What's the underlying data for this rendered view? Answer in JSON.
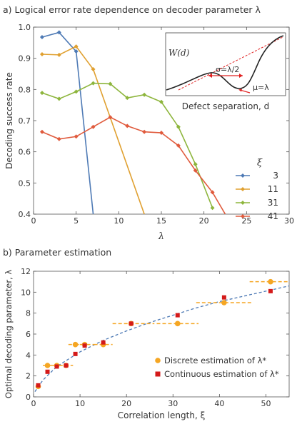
{
  "panel_a": {
    "title": "a) Logical error rate dependence on decoder parameter λ"
  },
  "panel_b": {
    "title": "b) Parameter estimation"
  },
  "colors": {
    "s3": "#4e7ab5",
    "s11": "#e0a030",
    "s31": "#8db53c",
    "s41": "#e05a3c",
    "discrete": "#f5a623",
    "continuous": "#d41a1a",
    "fit": "#4e7ab5",
    "inset_dash": "#e02020"
  },
  "chart_data": [
    {
      "type": "line",
      "xlabel": "λ",
      "ylabel": "Decoding success rate",
      "xlim": [
        0,
        30
      ],
      "ylim": [
        0.4,
        1.0
      ],
      "xticks": [
        0,
        5,
        10,
        15,
        20,
        25,
        30
      ],
      "yticks": [
        0.4,
        0.5,
        0.6,
        0.7,
        0.8,
        0.9,
        1.0
      ],
      "ytick_labels": [
        "0.4",
        "0.5",
        "0.6",
        "0.7",
        "0.8",
        "0.9",
        "1.0"
      ],
      "legend_title": "ξ",
      "legend_position": "right",
      "series": [
        {
          "name": "3",
          "x": [
            1,
            3,
            5,
            7
          ],
          "y": [
            0.968,
            0.983,
            0.922,
            0.4
          ]
        },
        {
          "name": "11",
          "x": [
            1,
            3,
            5,
            7,
            13
          ],
          "y": [
            0.913,
            0.911,
            0.938,
            0.865,
            0.4
          ]
        },
        {
          "name": "31",
          "x": [
            1,
            3,
            5,
            7,
            9,
            11,
            13,
            15,
            17,
            19,
            21
          ],
          "y": [
            0.789,
            0.77,
            0.793,
            0.82,
            0.818,
            0.773,
            0.783,
            0.76,
            0.68,
            0.56,
            0.42
          ]
        },
        {
          "name": "41",
          "x": [
            1,
            3,
            5,
            7,
            9,
            11,
            13,
            15,
            17,
            19,
            21,
            22.5
          ],
          "y": [
            0.664,
            0.641,
            0.649,
            0.68,
            0.711,
            0.683,
            0.664,
            0.661,
            0.62,
            0.54,
            0.47,
            0.4
          ]
        }
      ],
      "inset": {
        "ylabel": "W(d)",
        "xlabel": "Defect separation, d",
        "sigma_label": "σ=λ/2",
        "mu_label": "μ=λ"
      }
    },
    {
      "type": "scatter",
      "xlabel": "Correlation length, ξ",
      "ylabel": "Optimal decoding parameter, λ",
      "xlim": [
        0,
        55
      ],
      "ylim": [
        0,
        12
      ],
      "xticks": [
        0,
        10,
        20,
        30,
        40,
        50
      ],
      "yticks": [
        0,
        2,
        4,
        6,
        8,
        10,
        12
      ],
      "legend_position": "bottom-right",
      "series": [
        {
          "name": "Discrete estimation of λ*",
          "x": [
            1,
            3,
            5,
            7,
            9,
            11,
            15,
            21,
            31,
            41,
            51
          ],
          "y": [
            1,
            3,
            3,
            3,
            5,
            5,
            5,
            7,
            7,
            9,
            11
          ],
          "xerr_low": [
            0,
            1,
            1,
            1.5,
            1.5,
            2,
            2,
            4,
            4.5,
            6,
            4.5
          ],
          "xerr_high": [
            0,
            1,
            1,
            1.5,
            1.5,
            2,
            2,
            5,
            4.5,
            6,
            4.5
          ]
        },
        {
          "name": "Continuous estimation of λ*",
          "x": [
            1,
            3,
            5,
            7,
            9,
            11,
            15,
            21,
            31,
            41,
            51
          ],
          "y": [
            1.1,
            2.4,
            2.9,
            3.0,
            4.1,
            4.9,
            5.2,
            7.0,
            7.8,
            9.5,
            10.1
          ]
        },
        {
          "name": "fit",
          "x": [
            0.3,
            2,
            5,
            10,
            15,
            20,
            25,
            30,
            35,
            40,
            45,
            50,
            55
          ],
          "y": [
            0.5,
            1.6,
            2.9,
            4.3,
            5.4,
            6.3,
            7.1,
            7.8,
            8.5,
            9.1,
            9.6,
            10.1,
            10.6
          ]
        }
      ]
    }
  ]
}
